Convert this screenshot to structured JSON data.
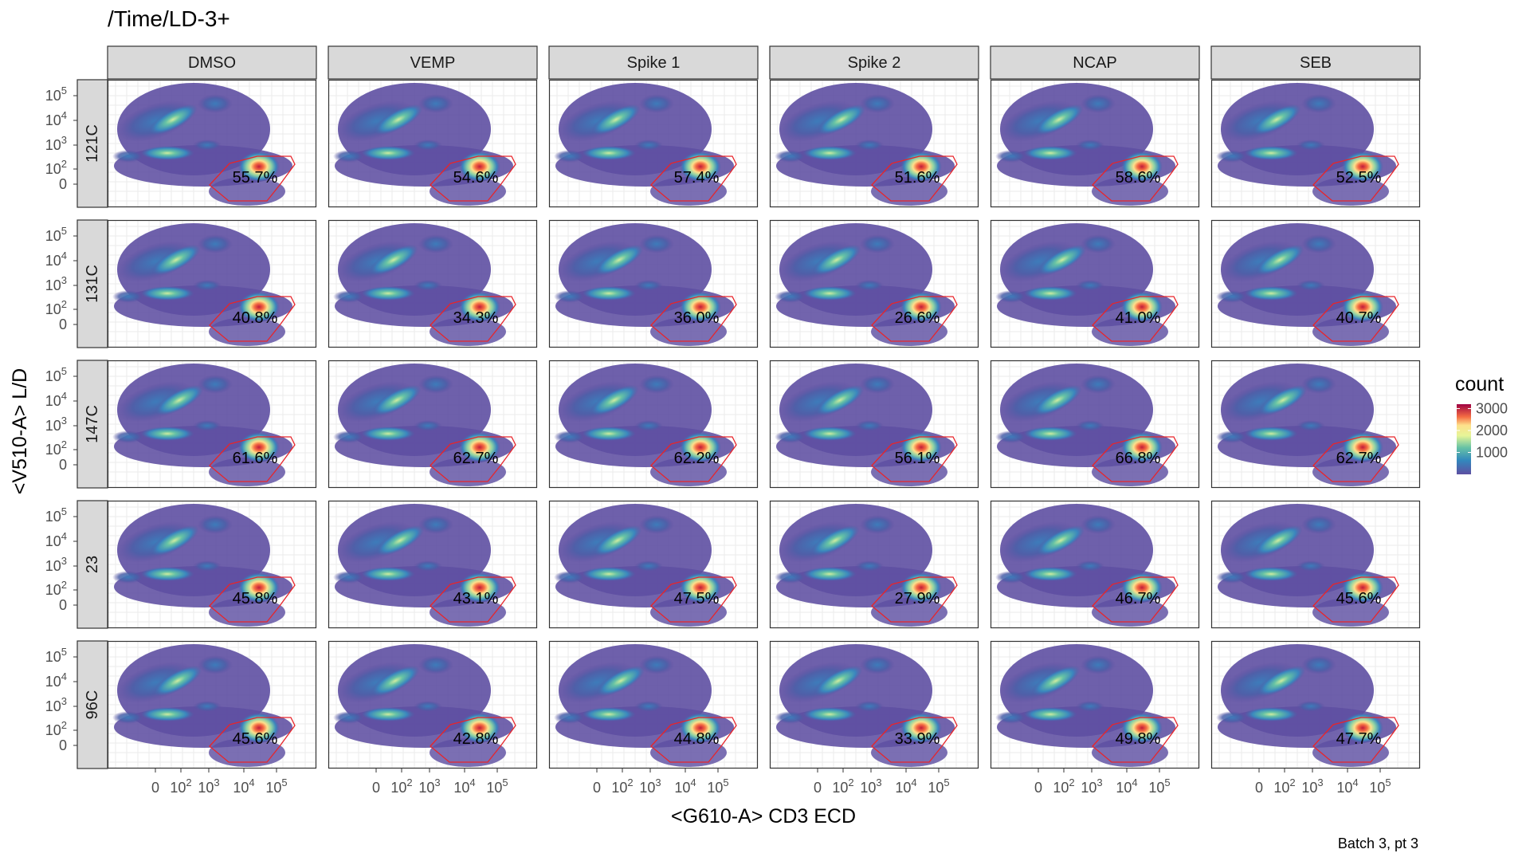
{
  "chart_data": {
    "type": "heatmap",
    "title": "/Time/LD-3+",
    "xlabel": "<G610-A> CD3 ECD",
    "ylabel": "<V510-A> L/D",
    "caption": "Batch 3, pt 3",
    "columns": [
      "DMSO",
      "VEMP",
      "Spike 1",
      "Spike 2",
      "NCAP",
      "SEB"
    ],
    "rows": [
      "121C",
      "131C",
      "147C",
      "23",
      "96C"
    ],
    "gate_percentages": [
      [
        "55.7%",
        "54.6%",
        "57.4%",
        "51.6%",
        "58.6%",
        "52.5%"
      ],
      [
        "40.8%",
        "34.3%",
        "36.0%",
        "26.6%",
        "41.0%",
        "40.7%"
      ],
      [
        "61.6%",
        "62.7%",
        "62.2%",
        "56.1%",
        "66.8%",
        "62.7%"
      ],
      [
        "45.8%",
        "43.1%",
        "47.5%",
        "27.9%",
        "46.7%",
        "45.6%"
      ],
      [
        "45.6%",
        "42.8%",
        "44.8%",
        "33.9%",
        "49.8%",
        "47.7%"
      ]
    ],
    "x_ticks": [
      "0",
      "10^2",
      "10^3",
      "10^4",
      "10^5"
    ],
    "y_ticks": [
      "10^5",
      "10^4",
      "10^3",
      "10^2",
      "0"
    ],
    "legend": {
      "title": "count",
      "ticks": [
        "3000",
        "2000",
        "1000"
      ],
      "position": "right",
      "colormap": "Spectral (reversed)"
    },
    "gate_color": "#e8242a",
    "grid": true
  }
}
